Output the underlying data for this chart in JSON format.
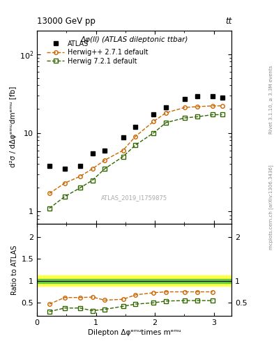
{
  "title_top": "13000 GeV pp",
  "title_top_right": "tt",
  "plot_title": "Δφ(ll) (ATLAS dileptonic ttbar)",
  "ylabel_main": "d²σ / dΔφᵉᵐᵘdmᵉᵐᵘ [fb]",
  "ylabel_ratio": "Ratio to ATLAS",
  "xlabel": "Dilepton Δφᵉᵐᵘtimes mᵉᵐᵘ",
  "right_label_top": "Rivet 3.1.10, ≥ 3.3M events",
  "right_label_bot": "mcplots.cern.ch [arXiv:1306.3436]",
  "watermark": "ATLAS_2019_I1759875",
  "atlas_x": [
    0.21,
    0.47,
    0.73,
    0.94,
    1.15,
    1.46,
    1.67,
    1.98,
    2.19,
    2.51,
    2.72,
    2.98,
    3.14
  ],
  "atlas_y": [
    3.8,
    3.5,
    3.8,
    5.5,
    6.0,
    8.8,
    12.0,
    17.0,
    21.0,
    27.0,
    29.0,
    29.0,
    28.0
  ],
  "herwig_x": [
    0.21,
    0.47,
    0.73,
    0.94,
    1.15,
    1.46,
    1.67,
    1.98,
    2.19,
    2.51,
    2.72,
    2.98,
    3.14
  ],
  "herwig_y": [
    1.7,
    2.3,
    2.8,
    3.5,
    4.5,
    6.0,
    9.0,
    14.0,
    18.0,
    21.0,
    21.5,
    22.0,
    22.0
  ],
  "herwig7_x": [
    0.21,
    0.47,
    0.73,
    0.94,
    1.15,
    1.46,
    1.67,
    1.98,
    2.19,
    2.51,
    2.72,
    2.98,
    3.14
  ],
  "herwig7_y": [
    1.1,
    1.55,
    2.0,
    2.5,
    3.5,
    5.0,
    7.0,
    10.0,
    13.5,
    15.5,
    16.0,
    17.0,
    17.0
  ],
  "ratio_x": [
    0.21,
    0.47,
    0.73,
    0.94,
    1.15,
    1.46,
    1.67,
    1.98,
    2.19,
    2.51,
    2.72,
    2.98
  ],
  "ratio_herwig_y": [
    0.47,
    0.62,
    0.62,
    0.63,
    0.56,
    0.58,
    0.68,
    0.73,
    0.75,
    0.75,
    0.75,
    0.75
  ],
  "ratio_herwig7_y": [
    0.3,
    0.38,
    0.38,
    0.32,
    0.35,
    0.42,
    0.47,
    0.5,
    0.54,
    0.55,
    0.55,
    0.55
  ],
  "band_green_lo": 0.95,
  "band_green_hi": 1.05,
  "band_yellow_lo": 0.88,
  "band_yellow_hi": 1.12,
  "color_atlas": "#000000",
  "color_herwig": "#cc6600",
  "color_herwig7": "#336600",
  "color_band_green": "#66cc44",
  "color_band_yellow": "#ffff44",
  "xlim": [
    0.0,
    3.3
  ],
  "ylim_main": [
    0.7,
    200
  ],
  "ylim_ratio": [
    0.2,
    2.3
  ],
  "yticks_ratio_left": [
    0.5,
    1.0,
    1.5,
    2.0
  ],
  "yticks_ratio_right": [
    0.5,
    1.0,
    2.0
  ],
  "legend_labels": [
    "ATLAS",
    "Herwig++ 2.7.1 default",
    "Herwig 7.2.1 default"
  ]
}
